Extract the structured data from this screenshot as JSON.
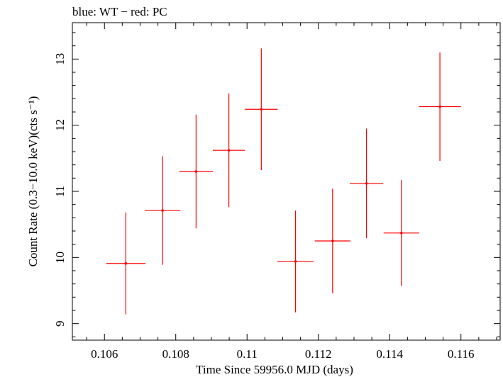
{
  "chart_data": {
    "type": "scatter",
    "title": "blue: WT − red: PC",
    "xlabel": "Time Since 59956.0 MJD (days)",
    "ylabel": "Count Rate (0.3−10.0 keV)(cts s⁻¹)",
    "xlim": [
      0.1051,
      0.1171
    ],
    "ylim": [
      8.75,
      13.55
    ],
    "x_ticks": [
      0.106,
      0.108,
      0.11,
      0.112,
      0.114,
      0.116
    ],
    "x_tick_labels": [
      "0.106",
      "0.108",
      "0.11",
      "0.112",
      "0.114",
      "0.116"
    ],
    "y_ticks": [
      9,
      10,
      11,
      12,
      13
    ],
    "y_tick_labels": [
      "9",
      "10",
      "11",
      "12",
      "13"
    ],
    "grid": false,
    "series": [
      {
        "color": "#ff0000",
        "points": [
          {
            "x": 0.1066,
            "xerr": 0.00055,
            "y": 9.91,
            "yerr": 0.77
          },
          {
            "x": 0.10763,
            "xerr": 0.0005,
            "y": 10.71,
            "yerr": 0.82
          },
          {
            "x": 0.10857,
            "xerr": 0.00047,
            "y": 11.3,
            "yerr": 0.86
          },
          {
            "x": 0.10949,
            "xerr": 0.00045,
            "y": 11.62,
            "yerr": 0.86
          },
          {
            "x": 0.1104,
            "xerr": 0.00046,
            "y": 12.24,
            "yerr": 0.92
          },
          {
            "x": 0.11136,
            "xerr": 0.00051,
            "y": 9.94,
            "yerr": 0.77
          },
          {
            "x": 0.1124,
            "xerr": 0.0005,
            "y": 10.25,
            "yerr": 0.79
          },
          {
            "x": 0.11335,
            "xerr": 0.00047,
            "y": 11.12,
            "yerr": 0.83
          },
          {
            "x": 0.11433,
            "xerr": 0.0005,
            "y": 10.37,
            "yerr": 0.8
          },
          {
            "x": 0.11541,
            "xerr": 0.00059,
            "y": 12.28,
            "yerr": 0.82
          }
        ]
      }
    ]
  }
}
